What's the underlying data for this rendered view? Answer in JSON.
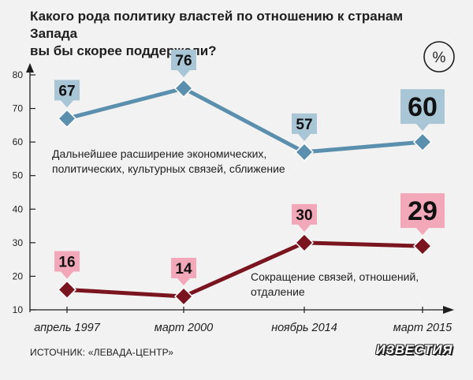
{
  "title_lines": [
    "Какого рода политику властей по отношению к странам Запада",
    "вы бы скорее поддержали?"
  ],
  "unit_badge": "%",
  "source": "ИСТОЧНИК: «ЛЕВАДА-ЦЕНТР»",
  "brand": "ИЗВЕСТИЯ",
  "colors": {
    "expansion": "#5a8fad",
    "expansion_label": "#a9c6d6",
    "reduction": "#7a1520",
    "reduction_label": "#f2a8b8",
    "axis": "#1e1e1e"
  },
  "chart_data": {
    "type": "line",
    "title": "Какого рода политику властей по отношению к странам Запада вы бы скорее поддержали?",
    "categories": [
      "апрель 1997",
      "март 2000",
      "ноябрь 2014",
      "март 2015"
    ],
    "ylim": [
      10,
      80
    ],
    "yticks": [
      10,
      20,
      30,
      40,
      50,
      60,
      70,
      80
    ],
    "xlabel": "",
    "ylabel": "",
    "grid": false,
    "series": [
      {
        "name": "Дальнейшее расширение экономических, политических, культурных связей, сближение",
        "name_lines": [
          "Дальнейшее расширение экономических,",
          "политических, культурных связей, сближение"
        ],
        "values": [
          67,
          76,
          57,
          60
        ]
      },
      {
        "name": "Сокращение связей, отношений, отдаление",
        "name_lines": [
          "Сокращение связей, отношений,",
          "отдаление"
        ],
        "values": [
          16,
          14,
          30,
          29
        ]
      }
    ]
  }
}
